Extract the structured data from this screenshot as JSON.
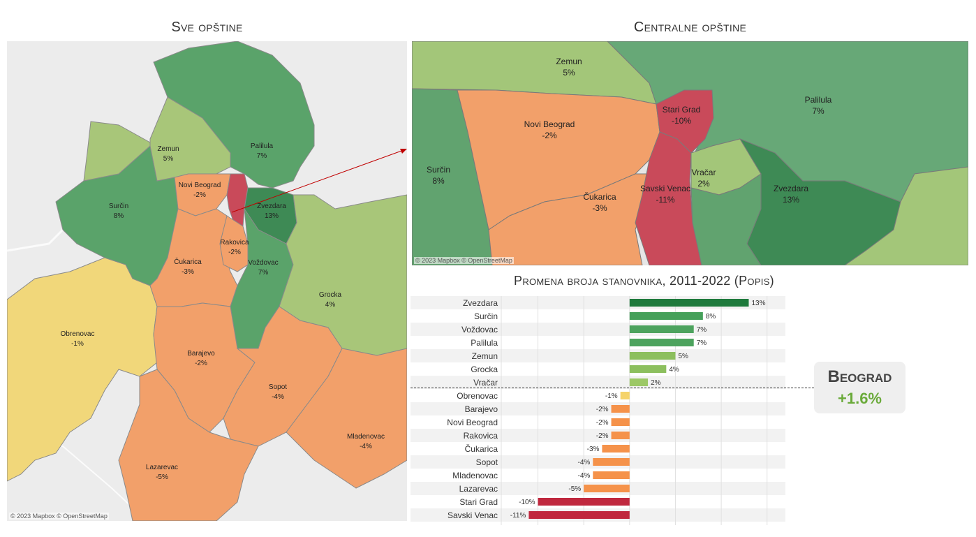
{
  "left_map": {
    "title": "Sve opštine",
    "credit": "© 2023 Mapbox © OpenStreetMap",
    "labels": [
      {
        "name": "Zemun",
        "value": "5%"
      },
      {
        "name": "Palilula",
        "value": "7%"
      },
      {
        "name": "Novi Beograd",
        "value": "-2%"
      },
      {
        "name": "Surčin",
        "value": "8%"
      },
      {
        "name": "Zvezdara",
        "value": "13%"
      },
      {
        "name": "Rakovica",
        "value": "-2%"
      },
      {
        "name": "Čukarica",
        "value": "-3%"
      },
      {
        "name": "Voždovac",
        "value": "7%"
      },
      {
        "name": "Grocka",
        "value": "4%"
      },
      {
        "name": "Obrenovac",
        "value": "-1%"
      },
      {
        "name": "Barajevo",
        "value": "-2%"
      },
      {
        "name": "Sopot",
        "value": "-4%"
      },
      {
        "name": "Mladenovac",
        "value": "-4%"
      },
      {
        "name": "Lazarevac",
        "value": "-5%"
      }
    ]
  },
  "right_map": {
    "title": "Centralne opštine",
    "credit": "© 2023 Mapbox © OpenStreetMap",
    "labels": [
      {
        "name": "Zemun",
        "value": "5%"
      },
      {
        "name": "Stari Grad",
        "value": "-10%"
      },
      {
        "name": "Palilula",
        "value": "7%"
      },
      {
        "name": "Novi Beograd",
        "value": "-2%"
      },
      {
        "name": "Surčin",
        "value": "8%"
      },
      {
        "name": "Vračar",
        "value": "2%"
      },
      {
        "name": "Savski Venac",
        "value": "-11%"
      },
      {
        "name": "Zvezdara",
        "value": "13%"
      },
      {
        "name": "Čukarica",
        "value": "-3%"
      }
    ]
  },
  "summary": {
    "label": "Beograd",
    "value": "+1.6%"
  },
  "colors": {
    "pos_13": "#1e7a3c",
    "pos_8": "#45a05a",
    "pos_7": "#4da35e",
    "pos_5": "#95c468",
    "pos_4": "#8cbf5e",
    "pos_2": "#9cc866",
    "neg_1": "#f5d36b",
    "neg_small": "#f5924a",
    "neg_large": "#c0283e"
  },
  "chart_data": {
    "type": "bar",
    "orientation": "horizontal",
    "title": "Promena broja stanovnika, 2011-2022 (Popis)",
    "categories": [
      "Zvezdara",
      "Surčin",
      "Voždovac",
      "Palilula",
      "Zemun",
      "Grocka",
      "Vračar",
      "Obrenovac",
      "Barajevo",
      "Novi Beograd",
      "Rakovica",
      "Čukarica",
      "Sopot",
      "Mladenovac",
      "Lazarevac",
      "Stari Grad",
      "Savski Venac"
    ],
    "values": [
      13,
      8,
      7,
      7,
      5,
      4,
      2,
      -1,
      -2,
      -2,
      -2,
      -3,
      -4,
      -4,
      -5,
      -10,
      -11
    ],
    "value_labels": [
      "13%",
      "8%",
      "7%",
      "7%",
      "5%",
      "4%",
      "2%",
      "-1%",
      "-2%",
      "-2%",
      "-2%",
      "-3%",
      "-4%",
      "-4%",
      "-5%",
      "-10%",
      "-11%"
    ],
    "bar_colors": [
      "#1e7a3c",
      "#45a05a",
      "#4da35e",
      "#4da35e",
      "#8cbf5e",
      "#8cbf5e",
      "#9cc866",
      "#f5d36b",
      "#f5924a",
      "#f5924a",
      "#f5924a",
      "#f5924a",
      "#f5924a",
      "#f5924a",
      "#f5924a",
      "#c0283e",
      "#c0283e"
    ],
    "xlim": [
      -14,
      17
    ],
    "grid": true
  }
}
